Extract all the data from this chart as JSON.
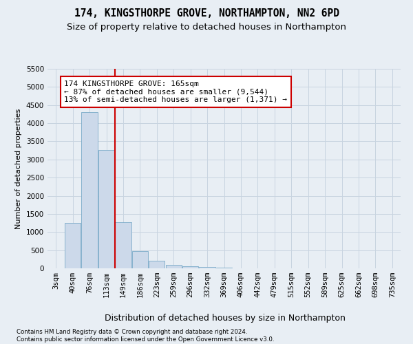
{
  "title_line1": "174, KINGSTHORPE GROVE, NORTHAMPTON, NN2 6PD",
  "title_line2": "Size of property relative to detached houses in Northampton",
  "xlabel": "Distribution of detached houses by size in Northampton",
  "ylabel": "Number of detached properties",
  "categories": [
    "3sqm",
    "40sqm",
    "76sqm",
    "113sqm",
    "149sqm",
    "186sqm",
    "223sqm",
    "259sqm",
    "296sqm",
    "332sqm",
    "369sqm",
    "406sqm",
    "442sqm",
    "479sqm",
    "515sqm",
    "552sqm",
    "589sqm",
    "625sqm",
    "662sqm",
    "698sqm",
    "735sqm"
  ],
  "values": [
    0,
    1250,
    4300,
    3270,
    1280,
    480,
    200,
    95,
    60,
    30,
    10,
    5,
    3,
    0,
    0,
    0,
    0,
    0,
    0,
    0,
    0
  ],
  "bar_color": "#ccd9ea",
  "bar_edge_color": "#7aaac8",
  "red_line_index": 4,
  "annotation_text": "174 KINGSTHORPE GROVE: 165sqm\n← 87% of detached houses are smaller (9,544)\n13% of semi-detached houses are larger (1,371) →",
  "annotation_box_facecolor": "#ffffff",
  "annotation_box_edgecolor": "#cc0000",
  "annotation_text_fontsize": 8,
  "ylim": [
    0,
    5500
  ],
  "yticks": [
    0,
    500,
    1000,
    1500,
    2000,
    2500,
    3000,
    3500,
    4000,
    4500,
    5000,
    5500
  ],
  "grid_color": "#c8d4e0",
  "background_color": "#e8eef4",
  "title_fontsize": 10.5,
  "subtitle_fontsize": 9.5,
  "footer_text": "Contains HM Land Registry data © Crown copyright and database right 2024.\nContains public sector information licensed under the Open Government Licence v3.0.",
  "red_line_color": "#cc0000",
  "ylabel_fontsize": 8,
  "xlabel_fontsize": 9,
  "tick_fontsize": 7.5
}
